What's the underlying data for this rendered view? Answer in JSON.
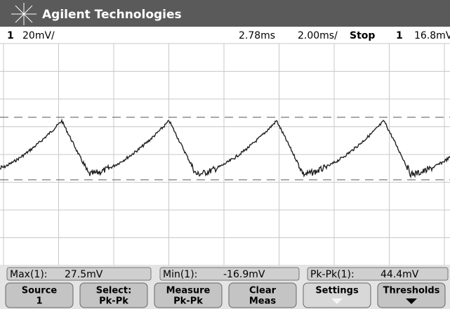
{
  "header": {
    "title": "Agilent Technologies"
  },
  "status": {
    "channel": "1",
    "scale": "20mV/",
    "delay": "2.78ms",
    "timebase": "2.00ms/",
    "run_state": "Stop",
    "trigger_source": "1",
    "trigger_level": "16.8mV"
  },
  "measurements": [
    {
      "label": "Max(1):",
      "value": "27.5mV"
    },
    {
      "label": "Min(1):",
      "value": "-16.9mV"
    },
    {
      "label": "Pk-Pk(1):",
      "value": "44.4mV"
    }
  ],
  "softkeys": [
    {
      "line1": "Source",
      "line2": "1"
    },
    {
      "line1": "Select:",
      "line2": "Pk-Pk"
    },
    {
      "line1": "Measure",
      "line2": "Pk-Pk"
    },
    {
      "line1": "Clear",
      "line2": "Meas"
    },
    {
      "line1": "Settings"
    },
    {
      "line1": "Thresholds"
    }
  ]
}
